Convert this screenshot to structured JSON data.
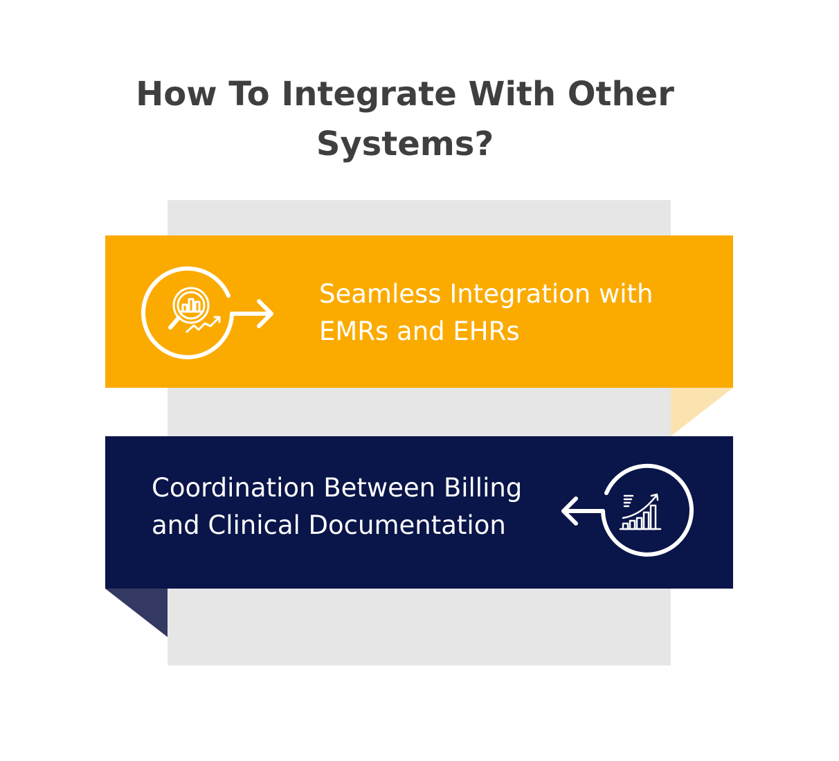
{
  "title": "How To Integrate With Other Systems?",
  "colors": {
    "accent_yellow": "#fbab00",
    "accent_navy": "#0a1549",
    "fold_yellow": "#fbe3b0",
    "fold_navy": "#343963",
    "panel_gray": "#e6e6e6",
    "title_text": "#3f3f3f"
  },
  "steps": [
    {
      "label": "Seamless Integration with\nEMRs and EHRs",
      "icon": "analytics-magnifier-icon",
      "arrow": "arrow-right-icon"
    },
    {
      "label": "Coordination Between Billing\nand Clinical Documentation",
      "icon": "growth-chart-icon",
      "arrow": "arrow-left-icon"
    }
  ]
}
